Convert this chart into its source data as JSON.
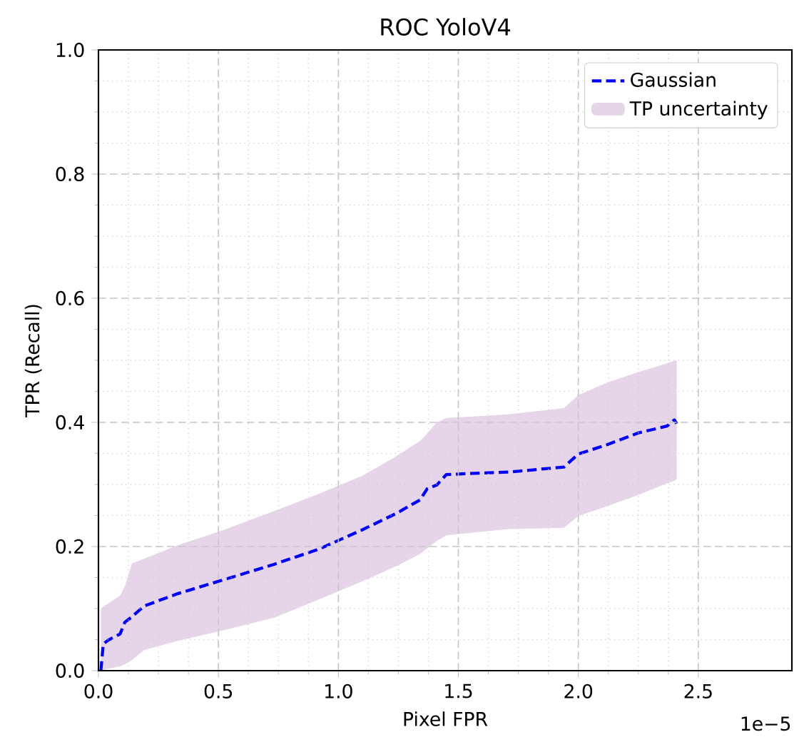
{
  "chart_data": {
    "type": "line",
    "title": "ROC YoloV4",
    "xlabel": "Pixel FPR",
    "ylabel": "TPR (Recall)",
    "annotations": [
      "1e−5"
    ],
    "xlim": [
      0,
      2.89
    ],
    "ylim": [
      0,
      1
    ],
    "xticks": [
      {
        "value": 0,
        "label": "0.0"
      },
      {
        "value": 0.5,
        "label": "0.5"
      },
      {
        "value": 1,
        "label": "1.0"
      },
      {
        "value": 1.5,
        "label": "1.5"
      },
      {
        "value": 2,
        "label": "2.0"
      },
      {
        "value": 2.5,
        "label": "2.5"
      }
    ],
    "yticks": [
      {
        "value": 0,
        "label": "0.0"
      },
      {
        "value": 0.2,
        "label": "0.2"
      },
      {
        "value": 0.4,
        "label": "0.4"
      },
      {
        "value": 0.6,
        "label": "0.6"
      },
      {
        "value": 0.8,
        "label": "0.8"
      },
      {
        "value": 1,
        "label": "1.0"
      }
    ],
    "grid": true,
    "legend": "top right",
    "marker": "none",
    "series": [
      {
        "name": "Gaussian",
        "color": "#0000ff",
        "line_style": "dashed",
        "x": [
          0.01,
          0.02,
          0.04,
          0.09,
          0.11,
          0.14,
          0.19,
          0.33,
          0.51,
          0.73,
          0.92,
          1.1,
          1.24,
          1.34,
          1.37,
          1.41,
          1.45,
          1.71,
          1.94,
          2.0,
          2.12,
          2.25,
          2.37,
          2.4,
          2.41
        ],
        "values": [
          0,
          0.043,
          0.049,
          0.059,
          0.078,
          0.087,
          0.104,
          0.124,
          0.145,
          0.171,
          0.196,
          0.227,
          0.253,
          0.275,
          0.293,
          0.299,
          0.316,
          0.32,
          0.328,
          0.349,
          0.364,
          0.383,
          0.394,
          0.404,
          0.398
        ],
        "upper": [
          0.1,
          0.103,
          0.108,
          0.121,
          0.136,
          0.173,
          0.18,
          0.202,
          0.225,
          0.257,
          0.285,
          0.314,
          0.345,
          0.37,
          0.382,
          0.4,
          0.407,
          0.413,
          0.423,
          0.444,
          0.464,
          0.481,
          0.495,
          0.499,
          0.5
        ],
        "lower": [
          0,
          0.001,
          0.003,
          0.007,
          0.01,
          0.017,
          0.033,
          0.048,
          0.064,
          0.085,
          0.115,
          0.144,
          0.168,
          0.188,
          0.197,
          0.209,
          0.218,
          0.228,
          0.23,
          0.249,
          0.265,
          0.283,
          0.302,
          0.306,
          0.308
        ]
      },
      {
        "name": "TP uncertainty",
        "type": "area",
        "color": "#e6d5e8"
      }
    ]
  }
}
